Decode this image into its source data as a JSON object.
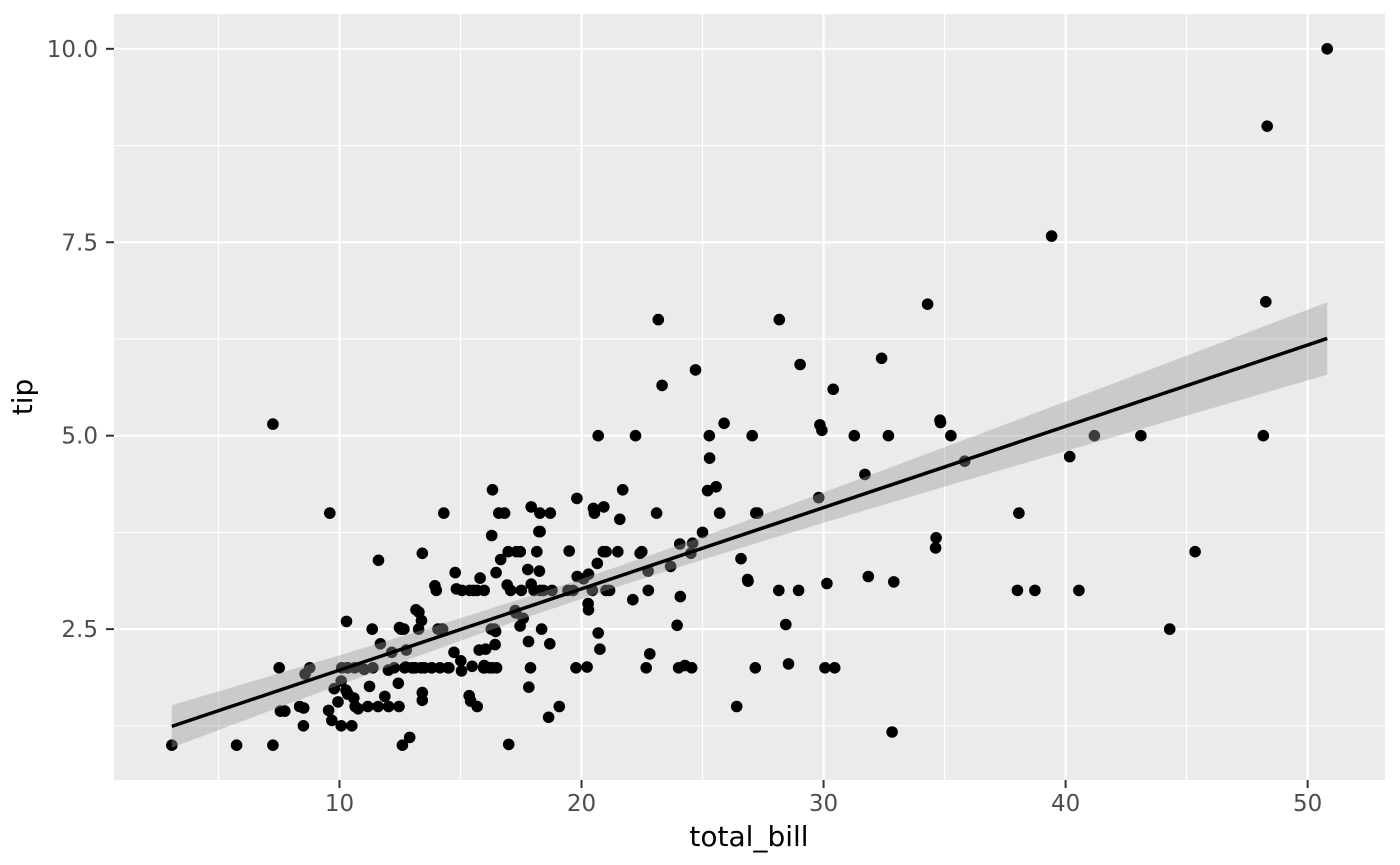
{
  "chart_data": {
    "type": "scatter",
    "title": "",
    "xlabel": "total_bill",
    "ylabel": "tip",
    "x_ticks": {
      "values": [
        10,
        20,
        30,
        40,
        50
      ],
      "labels": [
        "10",
        "20",
        "30",
        "40",
        "50"
      ]
    },
    "y_ticks": {
      "values": [
        2.5,
        5.0,
        7.5,
        10.0
      ],
      "labels": [
        "2.5",
        "5.0",
        "7.5",
        "10.0"
      ]
    },
    "x_minor": [
      5,
      15,
      25,
      35,
      45
    ],
    "y_minor": [
      1.25,
      3.75,
      6.25,
      8.75
    ],
    "xlim": [
      0.683,
      53.197
    ],
    "ylim": [
      0.55,
      10.45
    ],
    "grid": "on",
    "legend": "none",
    "smooth": {
      "method": "lm",
      "slope": 0.105025,
      "intercept": 0.92027,
      "x_range": [
        3.07,
        50.81
      ],
      "ci": {
        "level": 0.95,
        "t": 1.9697,
        "s": 1.022,
        "n": 244,
        "x_mean": 19.785943,
        "sxx": 19258.4
      }
    },
    "colors": {
      "panel": "#EBEBEB",
      "grid_major": "#FFFFFF",
      "grid_minor": "#FFFFFF",
      "point": "#000000",
      "line": "#000000",
      "ribbon": "rgba(153,153,153,0.4)",
      "tick_text": "#4D4D4D",
      "axis_title": "#000000",
      "tick_mark": "#333333"
    },
    "points": [
      [
        16.99,
        1.01
      ],
      [
        10.34,
        1.66
      ],
      [
        21.01,
        3.5
      ],
      [
        23.68,
        3.31
      ],
      [
        24.59,
        3.61
      ],
      [
        25.29,
        4.71
      ],
      [
        8.77,
        2.0
      ],
      [
        26.88,
        3.12
      ],
      [
        15.04,
        1.96
      ],
      [
        14.78,
        3.23
      ],
      [
        10.27,
        1.71
      ],
      [
        35.26,
        5.0
      ],
      [
        15.42,
        1.57
      ],
      [
        18.43,
        3.0
      ],
      [
        14.83,
        3.02
      ],
      [
        21.58,
        3.92
      ],
      [
        10.33,
        1.67
      ],
      [
        16.29,
        3.71
      ],
      [
        16.97,
        3.5
      ],
      [
        20.65,
        3.35
      ],
      [
        17.92,
        4.08
      ],
      [
        20.29,
        2.75
      ],
      [
        15.77,
        2.23
      ],
      [
        39.42,
        7.58
      ],
      [
        19.82,
        3.18
      ],
      [
        17.81,
        2.34
      ],
      [
        13.37,
        2.0
      ],
      [
        12.69,
        2.0
      ],
      [
        21.7,
        4.3
      ],
      [
        19.65,
        3.0
      ],
      [
        9.55,
        1.45
      ],
      [
        18.35,
        2.5
      ],
      [
        15.06,
        3.0
      ],
      [
        20.69,
        2.45
      ],
      [
        17.78,
        3.27
      ],
      [
        24.06,
        3.6
      ],
      [
        16.31,
        2.0
      ],
      [
        16.93,
        3.07
      ],
      [
        18.69,
        2.31
      ],
      [
        31.27,
        5.0
      ],
      [
        16.04,
        2.24
      ],
      [
        17.46,
        2.54
      ],
      [
        13.94,
        3.06
      ],
      [
        9.68,
        1.32
      ],
      [
        30.4,
        5.6
      ],
      [
        18.29,
        3.0
      ],
      [
        22.23,
        5.0
      ],
      [
        32.4,
        6.0
      ],
      [
        28.55,
        2.05
      ],
      [
        18.04,
        3.0
      ],
      [
        12.54,
        2.5
      ],
      [
        10.29,
        2.6
      ],
      [
        34.81,
        5.2
      ],
      [
        9.94,
        1.56
      ],
      [
        25.56,
        4.34
      ],
      [
        19.49,
        3.51
      ],
      [
        38.01,
        3.0
      ],
      [
        26.41,
        1.5
      ],
      [
        11.24,
        1.76
      ],
      [
        48.27,
        6.73
      ],
      [
        20.29,
        3.21
      ],
      [
        13.81,
        2.0
      ],
      [
        11.02,
        1.98
      ],
      [
        18.29,
        3.76
      ],
      [
        17.59,
        2.64
      ],
      [
        20.08,
        3.15
      ],
      [
        16.45,
        2.47
      ],
      [
        3.07,
        1.0
      ],
      [
        20.23,
        2.01
      ],
      [
        15.01,
        2.09
      ],
      [
        12.02,
        1.97
      ],
      [
        17.07,
        3.0
      ],
      [
        26.86,
        3.14
      ],
      [
        25.28,
        5.0
      ],
      [
        14.73,
        2.2
      ],
      [
        10.51,
        1.25
      ],
      [
        17.92,
        3.08
      ],
      [
        27.2,
        4.0
      ],
      [
        22.76,
        3.0
      ],
      [
        17.29,
        2.71
      ],
      [
        19.44,
        3.0
      ],
      [
        16.66,
        3.4
      ],
      [
        10.07,
        1.83
      ],
      [
        32.68,
        5.0
      ],
      [
        15.98,
        2.03
      ],
      [
        34.83,
        5.17
      ],
      [
        13.03,
        2.0
      ],
      [
        18.28,
        4.0
      ],
      [
        24.71,
        5.85
      ],
      [
        21.16,
        3.0
      ],
      [
        28.97,
        3.0
      ],
      [
        22.49,
        3.5
      ],
      [
        5.75,
        1.0
      ],
      [
        16.32,
        4.3
      ],
      [
        22.75,
        3.25
      ],
      [
        40.17,
        4.73
      ],
      [
        27.28,
        4.0
      ],
      [
        12.03,
        1.5
      ],
      [
        21.01,
        3.0
      ],
      [
        12.46,
        1.5
      ],
      [
        11.35,
        2.5
      ],
      [
        15.38,
        3.0
      ],
      [
        44.3,
        2.5
      ],
      [
        22.42,
        3.48
      ],
      [
        20.92,
        4.08
      ],
      [
        15.36,
        1.64
      ],
      [
        20.49,
        4.06
      ],
      [
        25.21,
        4.29
      ],
      [
        18.24,
        3.76
      ],
      [
        14.31,
        4.0
      ],
      [
        14.0,
        3.0
      ],
      [
        7.25,
        1.0
      ],
      [
        38.07,
        4.0
      ],
      [
        23.95,
        2.55
      ],
      [
        25.71,
        4.0
      ],
      [
        17.31,
        3.5
      ],
      [
        29.93,
        5.07
      ],
      [
        10.65,
        1.5
      ],
      [
        12.43,
        1.8
      ],
      [
        24.08,
        2.92
      ],
      [
        11.69,
        2.31
      ],
      [
        13.42,
        1.68
      ],
      [
        14.26,
        2.5
      ],
      [
        15.95,
        2.0
      ],
      [
        12.48,
        2.52
      ],
      [
        29.8,
        4.2
      ],
      [
        8.52,
        1.48
      ],
      [
        14.52,
        2.0
      ],
      [
        11.38,
        2.0
      ],
      [
        22.82,
        2.18
      ],
      [
        19.08,
        1.5
      ],
      [
        20.27,
        2.83
      ],
      [
        11.17,
        1.5
      ],
      [
        12.26,
        2.0
      ],
      [
        18.26,
        3.25
      ],
      [
        8.51,
        1.25
      ],
      [
        10.33,
        2.0
      ],
      [
        14.15,
        2.0
      ],
      [
        16.0,
        2.0
      ],
      [
        13.16,
        2.75
      ],
      [
        17.47,
        3.5
      ],
      [
        34.3,
        6.7
      ],
      [
        41.19,
        5.0
      ],
      [
        27.05,
        5.0
      ],
      [
        16.43,
        2.3
      ],
      [
        8.35,
        1.5
      ],
      [
        18.64,
        1.36
      ],
      [
        11.87,
        1.63
      ],
      [
        9.78,
        1.73
      ],
      [
        7.51,
        2.0
      ],
      [
        14.07,
        2.5
      ],
      [
        13.13,
        2.0
      ],
      [
        17.26,
        2.74
      ],
      [
        24.55,
        2.0
      ],
      [
        19.77,
        2.0
      ],
      [
        29.85,
        5.14
      ],
      [
        48.17,
        5.0
      ],
      [
        25.0,
        3.75
      ],
      [
        13.39,
        2.61
      ],
      [
        16.49,
        2.0
      ],
      [
        21.5,
        3.5
      ],
      [
        12.66,
        2.5
      ],
      [
        16.21,
        2.0
      ],
      [
        13.81,
        2.0
      ],
      [
        17.51,
        3.0
      ],
      [
        24.52,
        3.48
      ],
      [
        20.76,
        2.24
      ],
      [
        31.71,
        4.5
      ],
      [
        10.59,
        1.61
      ],
      [
        10.63,
        2.0
      ],
      [
        50.81,
        10.0
      ],
      [
        15.81,
        3.16
      ],
      [
        7.25,
        5.15
      ],
      [
        31.85,
        3.18
      ],
      [
        16.82,
        4.0
      ],
      [
        32.9,
        3.11
      ],
      [
        17.89,
        2.0
      ],
      [
        14.48,
        2.0
      ],
      [
        9.6,
        4.0
      ],
      [
        34.63,
        3.55
      ],
      [
        34.65,
        3.68
      ],
      [
        23.33,
        5.65
      ],
      [
        45.35,
        3.5
      ],
      [
        23.17,
        6.5
      ],
      [
        40.55,
        3.0
      ],
      [
        20.69,
        5.0
      ],
      [
        20.9,
        3.5
      ],
      [
        30.46,
        2.0
      ],
      [
        18.15,
        3.5
      ],
      [
        23.1,
        4.0
      ],
      [
        15.69,
        1.5
      ],
      [
        19.81,
        4.19
      ],
      [
        28.44,
        2.56
      ],
      [
        15.48,
        2.02
      ],
      [
        16.58,
        4.0
      ],
      [
        7.56,
        1.44
      ],
      [
        10.34,
        2.0
      ],
      [
        43.11,
        5.0
      ],
      [
        13.0,
        2.0
      ],
      [
        13.51,
        2.0
      ],
      [
        18.71,
        4.0
      ],
      [
        12.74,
        2.01
      ],
      [
        13.0,
        2.0
      ],
      [
        16.4,
        2.5
      ],
      [
        20.53,
        4.0
      ],
      [
        16.47,
        3.23
      ],
      [
        26.59,
        3.41
      ],
      [
        38.73,
        3.0
      ],
      [
        24.27,
        2.03
      ],
      [
        12.76,
        2.23
      ],
      [
        30.06,
        2.0
      ],
      [
        25.89,
        5.16
      ],
      [
        48.33,
        9.0
      ],
      [
        13.27,
        2.5
      ],
      [
        28.17,
        6.5
      ],
      [
        12.9,
        1.1
      ],
      [
        28.15,
        3.0
      ],
      [
        11.59,
        1.5
      ],
      [
        7.74,
        1.44
      ],
      [
        30.14,
        3.09
      ],
      [
        12.16,
        2.2
      ],
      [
        13.42,
        3.48
      ],
      [
        8.58,
        1.92
      ],
      [
        15.98,
        3.0
      ],
      [
        13.42,
        1.58
      ],
      [
        16.27,
        2.5
      ],
      [
        10.09,
        2.0
      ],
      [
        20.45,
        3.0
      ],
      [
        13.28,
        2.72
      ],
      [
        22.12,
        2.88
      ],
      [
        24.01,
        2.0
      ],
      [
        15.69,
        3.0
      ],
      [
        11.61,
        3.39
      ],
      [
        10.77,
        1.47
      ],
      [
        15.53,
        3.0
      ],
      [
        10.07,
        1.25
      ],
      [
        12.6,
        1.0
      ],
      [
        32.83,
        1.17
      ],
      [
        35.83,
        4.67
      ],
      [
        29.03,
        5.92
      ],
      [
        27.18,
        2.0
      ],
      [
        22.67,
        2.0
      ],
      [
        17.82,
        1.75
      ],
      [
        18.78,
        3.0
      ]
    ]
  }
}
